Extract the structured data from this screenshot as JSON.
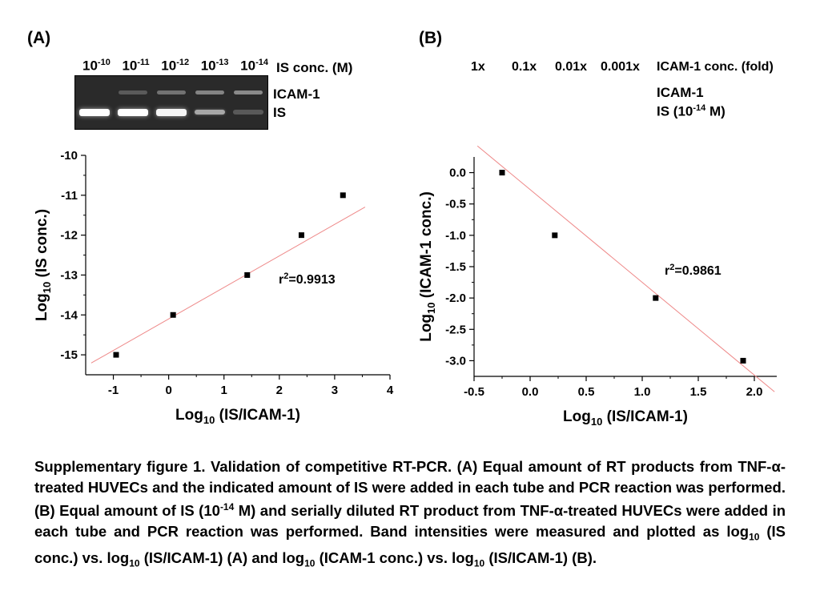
{
  "panelA": {
    "label": "(A)",
    "gel": {
      "lanes": [
        {
          "base": "10",
          "exp": "-10"
        },
        {
          "base": "10",
          "exp": "-11"
        },
        {
          "base": "10",
          "exp": "-12"
        },
        {
          "base": "10",
          "exp": "-13"
        },
        {
          "base": "10",
          "exp": "-14"
        }
      ],
      "lanes_title": "IS conc. (M)",
      "band_icam": "ICAM-1",
      "band_is": "IS",
      "icam_intensity": [
        0.0,
        0.25,
        0.45,
        0.6,
        0.65
      ],
      "is_intensity": [
        1.0,
        1.0,
        0.95,
        0.55,
        0.15
      ]
    },
    "r2": "r",
    "r2_sup": "2",
    "r2_value": "=0.9913"
  },
  "panelB": {
    "label": "(B)",
    "folds": [
      "1x",
      "0.1x",
      "0.01x",
      "0.001x"
    ],
    "folds_title": "ICAM-1 conc. (fold)",
    "band_icam": "ICAM-1",
    "band_is_prefix": "IS (10",
    "band_is_sup": "-14",
    "band_is_suffix": " M)",
    "r2": "r",
    "r2_sup": "2",
    "r2_value": "=0.9861"
  },
  "chart_data": [
    {
      "type": "scatter",
      "title": "",
      "xlabel_prefix": "Log",
      "xlabel_sub": "10",
      "xlabel_suffix": " (IS/ICAM-1)",
      "ylabel_prefix": "Log",
      "ylabel_sub": "10",
      "ylabel_suffix": " (IS conc.)",
      "x": [
        -0.95,
        0.08,
        1.42,
        2.4,
        3.15
      ],
      "y": [
        -15,
        -14,
        -13,
        -12,
        -11
      ],
      "xlim": [
        -1.5,
        4
      ],
      "ylim": [
        -15.5,
        -10
      ],
      "xticks": [
        -1,
        0,
        1,
        2,
        3,
        4
      ],
      "yticks": [
        -15,
        -14,
        -13,
        -12,
        -11,
        -10
      ],
      "fit": {
        "slope": 0.79,
        "intercept": -14.1
      },
      "grid": false
    },
    {
      "type": "scatter",
      "title": "",
      "xlabel_prefix": "Log",
      "xlabel_sub": "10",
      "xlabel_suffix": " (IS/ICAM-1)",
      "ylabel_prefix": "Log",
      "ylabel_sub": "10",
      "ylabel_suffix": " (ICAM-1 conc.)",
      "x": [
        -0.25,
        0.22,
        1.12,
        1.9
      ],
      "y": [
        0,
        -1,
        -2,
        -3
      ],
      "xlim": [
        -0.5,
        2.2
      ],
      "ylim": [
        -3.25,
        0.25
      ],
      "xticks": [
        "-0.5",
        "0.0",
        "0.5",
        "1.0",
        "1.5",
        "2.0"
      ],
      "yticks": [
        "0.0",
        "-0.5",
        "-1.0",
        "-1.5",
        "-2.0",
        "-2.5",
        "-3.0"
      ],
      "fit": {
        "slope": -1.48,
        "intercept": -0.27
      },
      "grid": false
    }
  ],
  "caption": {
    "p1": "Supplementary figure 1. Validation of competitive RT-PCR. (A) Equal amount of RT products from TNF-",
    "alpha1": "α",
    "p2": "-treated HUVECs and the indicated amount of IS were added in each tube and PCR reaction was performed. (B) Equal amount of IS (10",
    "sup1": "-14",
    "p3": " M) and serially diluted RT product from TNF-",
    "alpha2": "α",
    "p4": "-treated HUVECs were added in each tube and PCR reaction was performed. Band intensities were measured and plotted as log",
    "sub1": "10",
    "p5": " (IS conc.) vs. log",
    "sub2": "10",
    "p6": " (IS/ICAM-1) (A) and log",
    "sub3": "10",
    "p7": " (ICAM-1 conc.) vs. log",
    "sub4": "10",
    "p8": " (IS/ICAM-1) (B)."
  }
}
